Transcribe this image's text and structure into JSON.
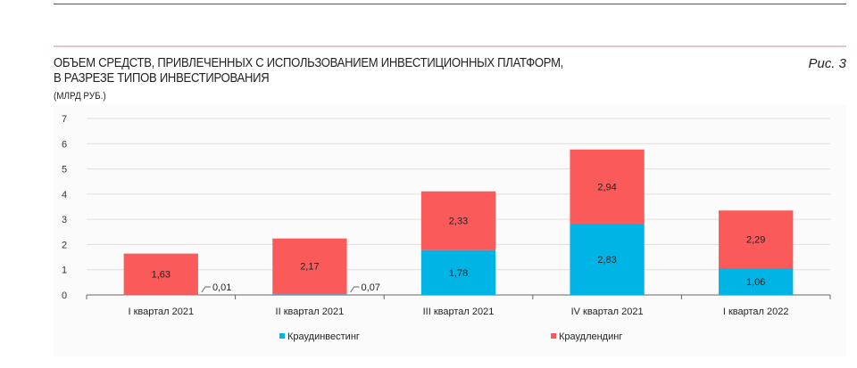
{
  "header": {
    "title_line1": "ОБЪЕМ СРЕДСТВ, ПРИВЛЕЧЕННЫХ С ИСПОЛЬЗОВАНИЕМ ИНВЕСТИЦИОННЫХ ПЛАТФОРМ,",
    "title_line2": "В РАЗРЕЗЕ ТИПОВ ИНВЕСТИРОВАНИЯ",
    "units": "(МЛРД РУБ.)",
    "figure_label": "Рис. 3"
  },
  "chart_data": {
    "type": "bar",
    "stacked": true,
    "title": "ОБЪЕМ СРЕДСТВ, ПРИВЛЕЧЕННЫХ С ИСПОЛЬЗОВАНИЕМ ИНВЕСТИЦИОННЫХ ПЛАТФОРМ, В РАЗРЕЗЕ ТИПОВ ИНВЕСТИРОВАНИЯ",
    "ylabel": "(МЛРД РУБ.)",
    "categories": [
      "I квартал 2021",
      "II квартал 2021",
      "III квартал 2021",
      "IV  квартал 2021",
      "I квартал 2022"
    ],
    "series": [
      {
        "name": "Краудинвестинг",
        "color": "#00b4e6",
        "values": [
          0.01,
          0.07,
          1.78,
          2.83,
          1.06
        ],
        "labels": [
          "0,01",
          "0,07",
          "1,78",
          "2,83",
          "1,06"
        ]
      },
      {
        "name": "Краудлендинг",
        "color": "#fb5a5a",
        "values": [
          1.63,
          2.17,
          2.33,
          2.94,
          2.29
        ],
        "labels": [
          "1,63",
          "2,17",
          "2,33",
          "2,94",
          "2,29"
        ]
      }
    ],
    "ylim": [
      0,
      7
    ],
    "yticks": [
      "0",
      "1",
      "2",
      "3",
      "4",
      "5",
      "6",
      "7"
    ],
    "grid": true,
    "legend": "bottom"
  }
}
